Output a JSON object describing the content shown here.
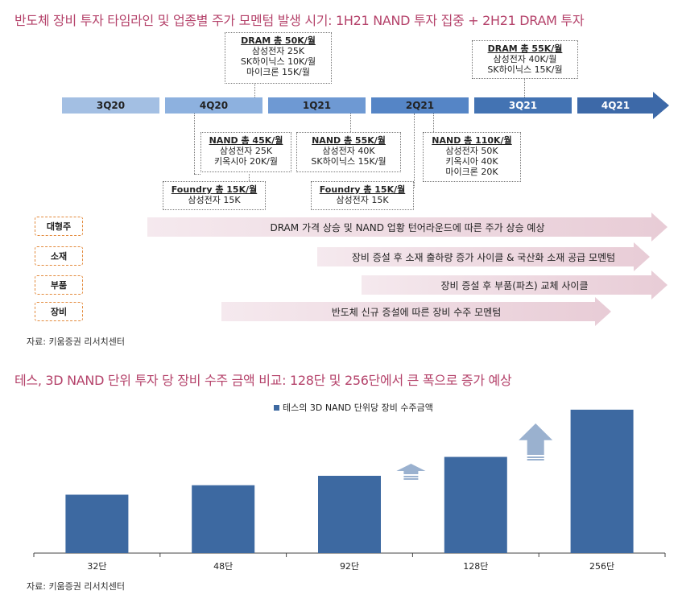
{
  "timeline_title": "반도체 장비 투자 타임라인 및 업종별 주가 모멘텀 발생 시기: 1H21 NAND 투자 집중 + 2H21 DRAM 투자",
  "quarters": [
    "3Q20",
    "4Q20",
    "1Q21",
    "2Q21",
    "3Q21",
    "4Q21"
  ],
  "annotations": {
    "dram_1q21": {
      "head": "DRAM 총 50K/월",
      "lines": [
        "삼성전자 25K",
        "SK하이닉스 10K/월",
        "마이크론 15K/월"
      ]
    },
    "dram_3q21": {
      "head": "DRAM 총 55K/월",
      "lines": [
        "삼성전자 40K/월",
        "SK하이닉스 15K/월"
      ]
    },
    "nand_4q20": {
      "head": "NAND 총 45K/월",
      "lines": [
        "삼성전자 25K",
        "키옥시아 20K/월"
      ]
    },
    "nand_1q21": {
      "head": "NAND 총 55K/월",
      "lines": [
        "삼성전자 40K",
        "SK하이닉스 15K/월"
      ]
    },
    "nand_2q21": {
      "head": "NAND 총 110K/월",
      "lines": [
        "삼성전자 50K",
        "키옥시아 40K",
        "마이크론 20K"
      ]
    },
    "foundry_4q20": {
      "head": "Foundry 총 15K/월",
      "lines": [
        "삼성전자 15K"
      ]
    },
    "foundry_2q21": {
      "head": "Foundry 총 15K/월",
      "lines": [
        "삼성전자 15K"
      ]
    }
  },
  "momentum_rows": [
    {
      "category": "대형주",
      "text": "DRAM 가격 상승 및 NAND 업황 턴어라운드에 따른 주가 상승 예상"
    },
    {
      "category": "소재",
      "text": "장비 증설 후 소재 출하량 증가 사이클 & 국산화 소재 공급 모멘텀"
    },
    {
      "category": "부품",
      "text": "장비 증설 후 부품(파츠) 교체 사이클"
    },
    {
      "category": "장비",
      "text": "반도체 신규 증설에 따른 장비 수주 모멘텀"
    }
  ],
  "source_1": "자료: 키움증권 리서치센터",
  "chart_title": "테스, 3D NAND 단위 투자 당 장비 수주 금액 비교: 128단 및 256단에서 큰 폭으로 증가 예상",
  "chart_data": {
    "type": "bar",
    "categories": [
      "32단",
      "48단",
      "92단",
      "128단",
      "256단"
    ],
    "series": [
      {
        "name": "테스의 3D NAND 단위당 장비 수주금액",
        "values": [
          68,
          79,
          90,
          112,
          167
        ]
      }
    ],
    "ylim": [
      0,
      180
    ],
    "grid": false,
    "legend_position": "top-center",
    "bar_color": "#3d69a1",
    "arrow_color": "#9ab1cf"
  },
  "source_2": "자료: 키움증권 리서치센터",
  "colors": {
    "title": "#b5436b",
    "band": "#ecd4dc",
    "cat_border": "#e38a3c"
  }
}
